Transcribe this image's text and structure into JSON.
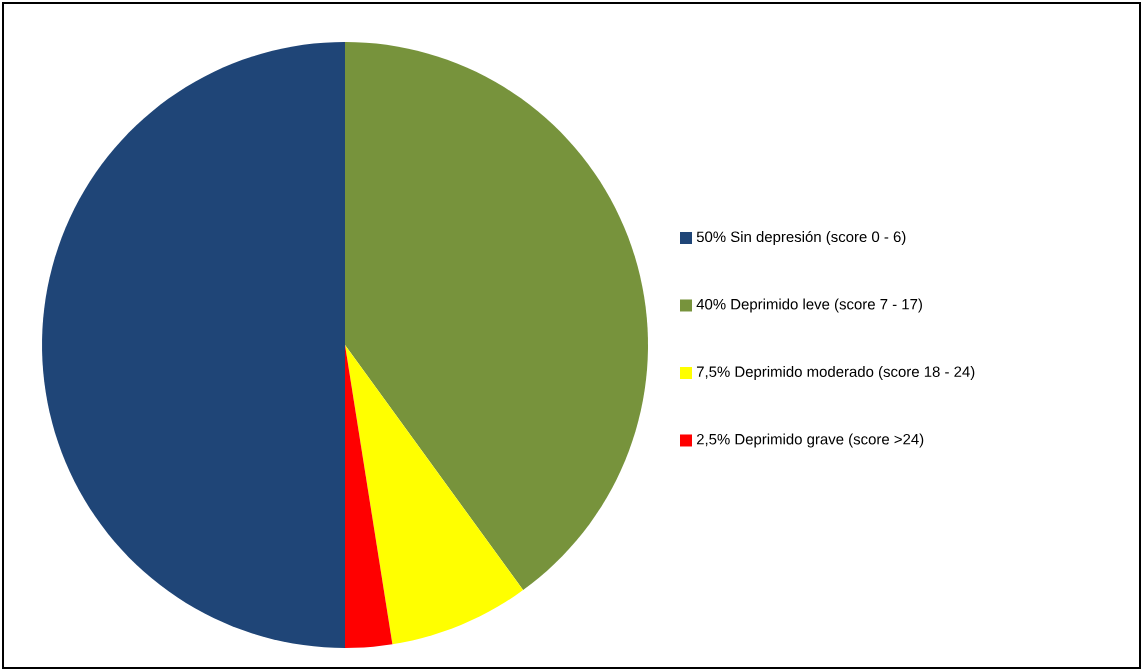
{
  "chart_data": {
    "type": "pie",
    "categories": [
      "50% Sin depresión (score 0 - 6)",
      "40% Deprimido leve (score 7 - 17)",
      "7,5% Deprimido moderado (score 18 - 24)",
      "2,5% Deprimido grave (score >24)"
    ],
    "values": [
      50,
      40,
      7.5,
      2.5
    ],
    "colors": [
      "#1f4577",
      "#77933c",
      "#ffff00",
      "#ff0000"
    ],
    "legend": "right"
  }
}
